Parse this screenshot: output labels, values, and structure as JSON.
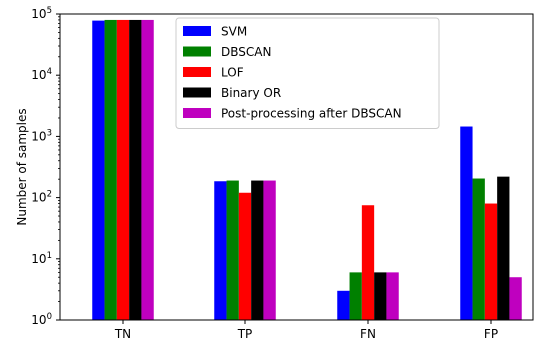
{
  "chart_data": {
    "type": "bar",
    "title": "",
    "xlabel": "",
    "ylabel": "Number of samples",
    "yscale": "log",
    "ylim": [
      1,
      100000
    ],
    "grid": false,
    "legend_position": "top-center",
    "categories": [
      "TN",
      "TP",
      "FN",
      "FP"
    ],
    "yticks": [
      {
        "value": 1,
        "base": "10",
        "exp": "0"
      },
      {
        "value": 10,
        "base": "10",
        "exp": "1"
      },
      {
        "value": 100,
        "base": "10",
        "exp": "2"
      },
      {
        "value": 1000,
        "base": "10",
        "exp": "3"
      },
      {
        "value": 10000,
        "base": "10",
        "exp": "4"
      },
      {
        "value": 100000,
        "base": "10",
        "exp": "5"
      }
    ],
    "series": [
      {
        "name": "SVM",
        "color": "#0000ff",
        "values": [
          78000,
          185,
          3,
          1450
        ]
      },
      {
        "name": "DBSCAN",
        "color": "#008000",
        "values": [
          80000,
          190,
          6,
          205
        ]
      },
      {
        "name": "LOF",
        "color": "#ff0000",
        "values": [
          80000,
          120,
          75,
          80
        ]
      },
      {
        "name": "Binary OR",
        "color": "#000000",
        "values": [
          80000,
          190,
          6,
          220
        ]
      },
      {
        "name": "Post-processing after DBSCAN",
        "color": "#bf00bf",
        "values": [
          80000,
          190,
          6,
          5
        ]
      }
    ]
  }
}
